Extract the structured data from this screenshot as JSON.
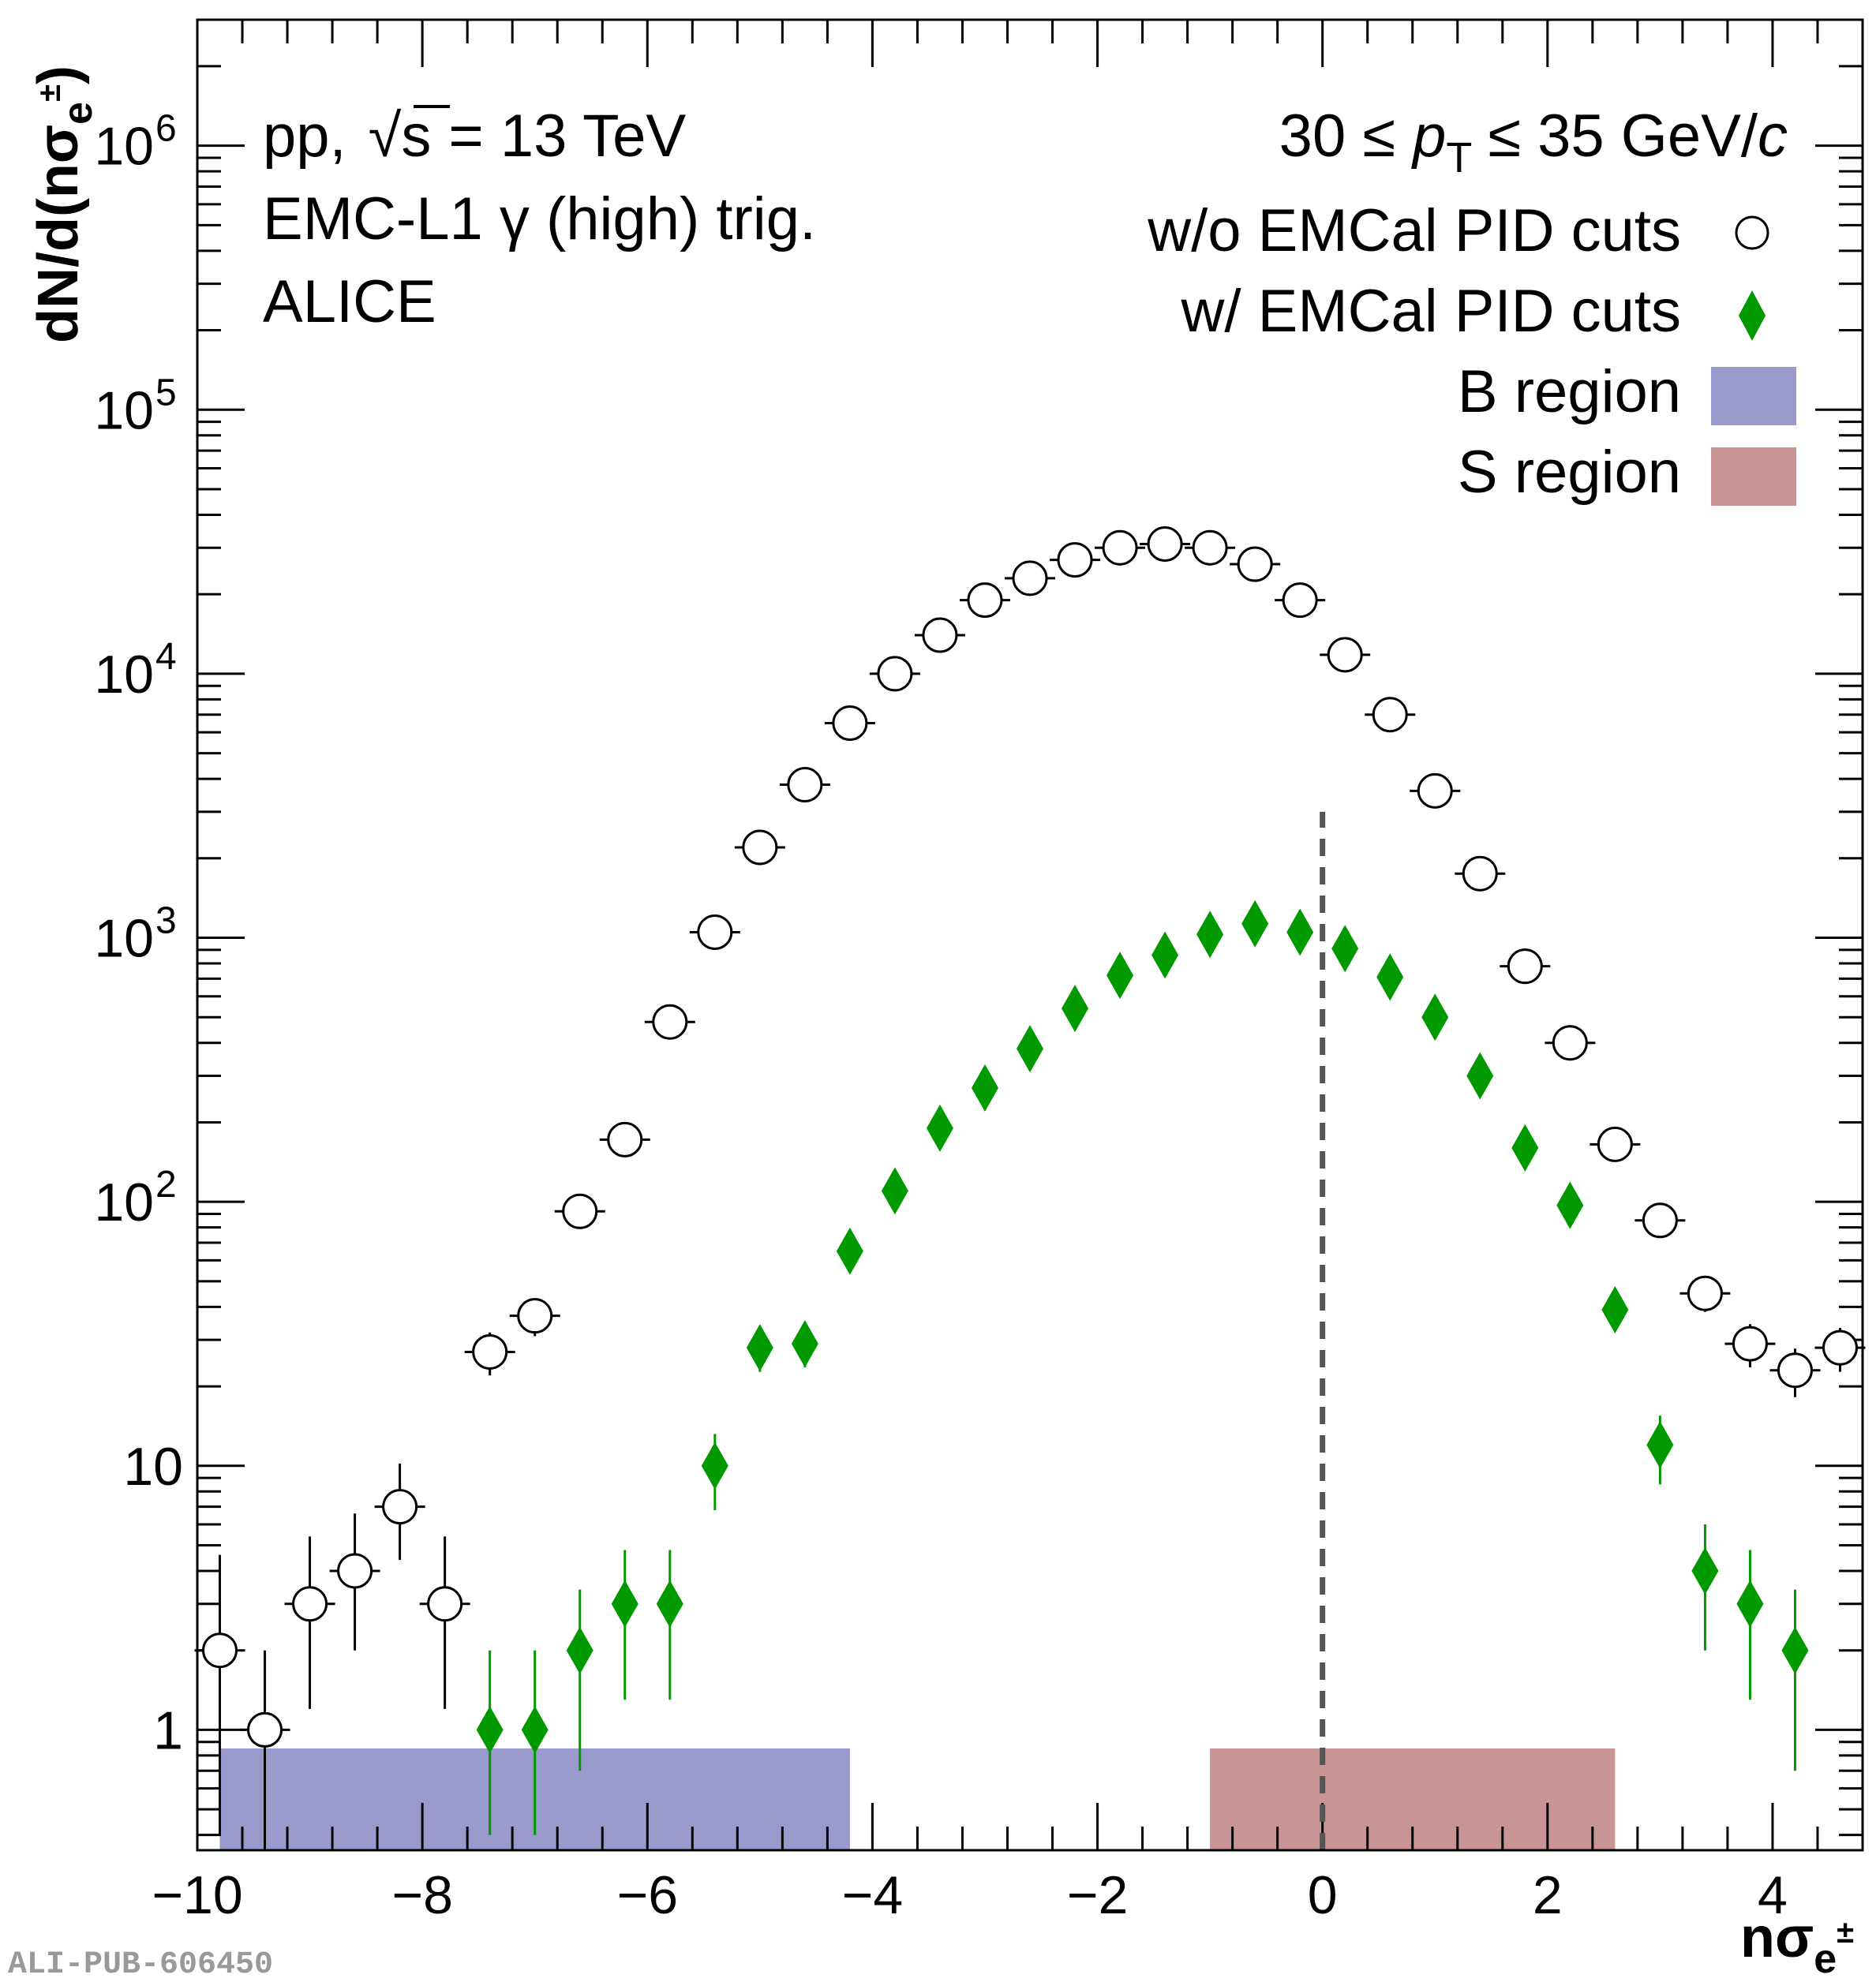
{
  "chart_data": {
    "type": "scatter",
    "xlabel": "nσ",
    "xlabel_sub": "e",
    "xlabel_sup": "±",
    "ylabel": "dN/d(nσ",
    "ylabel_sub": "e",
    "ylabel_sup": "±",
    "ylabel_close": ")",
    "xlim": [
      -10,
      4.8
    ],
    "ylim": [
      0.35,
      3000000
    ],
    "yscale": "log",
    "x_ticks": [
      "−10",
      "−8",
      "−6",
      "−4",
      "−2",
      "0",
      "2",
      "4"
    ],
    "x_tick_values": [
      -10,
      -8,
      -6,
      -4,
      -2,
      0,
      2,
      4
    ],
    "y_ticks": [
      {
        "value": 1,
        "base": "1",
        "exp": ""
      },
      {
        "value": 10,
        "base": "10",
        "exp": ""
      },
      {
        "value": 100,
        "base": "10",
        "exp": "2"
      },
      {
        "value": 1000,
        "base": "10",
        "exp": "3"
      },
      {
        "value": 10000,
        "base": "10",
        "exp": "4"
      },
      {
        "value": 100000,
        "base": "10",
        "exp": "5"
      },
      {
        "value": 1000000,
        "base": "10",
        "exp": "6"
      }
    ],
    "annotations": {
      "line1_pre": "pp,",
      "line1_root": "√",
      "line1_s": "s",
      "line1_post": "= 13 TeV",
      "line2": "EMC-L1 γ (high) trig.",
      "line3": "ALICE",
      "pt_pre": "30 ≤",
      "pt_p": "p",
      "pt_sub": "T",
      "pt_post": "≤ 35 GeV/",
      "pt_c": "c"
    },
    "legend_position": "top-right",
    "legend": [
      {
        "label": "w/o EMCal PID cuts",
        "marker": "open-circle"
      },
      {
        "label": "w/ EMCal PID cuts",
        "marker": "diamond"
      },
      {
        "label": "B region",
        "marker": "box"
      },
      {
        "label": "S region",
        "marker": "box"
      }
    ],
    "colors": {
      "open": "#000000",
      "diamond": "#009900",
      "b_region": "#9999cc",
      "s_region": "#c99494",
      "dashed": "#555555"
    },
    "b_region": [
      -9.8,
      -4.2
    ],
    "s_region": [
      -1.0,
      2.6
    ],
    "dashed_x": 0,
    "dashed_top": 3000,
    "series": [
      {
        "marker": "open-circle",
        "x": [
          -9.8,
          -9.4,
          -9.0,
          -8.6,
          -8.2,
          -7.8,
          -7.4,
          -7.0,
          -6.6,
          -6.2,
          -5.8,
          -5.4,
          -5.0,
          -4.6,
          -4.2,
          -3.8,
          -3.4,
          -3.0,
          -2.6,
          -2.2,
          -1.8,
          -1.4,
          -1.0,
          -0.6,
          -0.2,
          0.2,
          0.6,
          1.0,
          1.4,
          1.8,
          2.2,
          2.6,
          3.0,
          3.4,
          3.8,
          4.2,
          4.6
        ],
        "y": [
          2,
          1,
          3,
          4,
          7,
          3,
          27,
          37,
          92,
          172,
          480,
          1050,
          2200,
          3800,
          6500,
          10000,
          14000,
          19000,
          23000,
          27000,
          30000,
          31000,
          30000,
          26000,
          19000,
          11800,
          7000,
          3600,
          1750,
          780,
          400,
          165,
          85,
          45,
          29,
          23,
          28
        ],
        "err_lo": [
          1.6,
          0.9,
          1.8,
          2.0,
          2.6,
          1.8,
          5,
          6,
          9,
          13,
          22,
          32,
          47,
          62,
          81,
          100,
          118,
          138,
          152,
          164,
          173,
          176,
          173,
          161,
          138,
          109,
          84,
          60,
          42,
          28,
          20,
          13,
          9,
          6.7,
          5.4,
          4.8,
          5.3
        ],
        "err_hi": [
          2.6,
          1.0,
          2.4,
          2.6,
          3.2,
          2.4,
          5,
          6,
          9,
          13,
          22,
          32,
          47,
          62,
          81,
          100,
          118,
          138,
          152,
          164,
          173,
          176,
          173,
          161,
          138,
          109,
          84,
          60,
          42,
          28,
          20,
          13,
          9,
          6.7,
          5.4,
          4.8,
          5.3
        ]
      },
      {
        "marker": "diamond",
        "x": [
          -7.4,
          -7.0,
          -6.6,
          -6.2,
          -5.8,
          -5.4,
          -5.0,
          -4.6,
          -4.2,
          -3.8,
          -3.4,
          -3.0,
          -2.6,
          -2.2,
          -1.8,
          -1.4,
          -1.0,
          -0.6,
          -0.2,
          0.2,
          0.6,
          1.0,
          1.4,
          1.8,
          2.2,
          2.6,
          3.0,
          3.4,
          3.8,
          4.2
        ],
        "y": [
          1,
          1,
          2,
          3,
          3,
          10,
          28,
          29,
          65,
          110,
          190,
          270,
          380,
          540,
          720,
          860,
          1030,
          1130,
          1050,
          910,
          710,
          500,
          300,
          160,
          97,
          39,
          12,
          4,
          3,
          2
        ],
        "err_lo": [
          0.6,
          0.6,
          1.3,
          1.7,
          1.7,
          3.2,
          5.3,
          5.4,
          8,
          10.5,
          13.8,
          16.4,
          19.5,
          23.2,
          26.8,
          29.3,
          32,
          33.6,
          32.4,
          30.2,
          26.6,
          22.4,
          17.3,
          12.6,
          9.8,
          6.2,
          3.5,
          2.0,
          1.7,
          1.3
        ],
        "err_hi": [
          1.0,
          1.0,
          1.4,
          1.8,
          1.8,
          3.2,
          5.3,
          5.4,
          8,
          10.5,
          13.8,
          16.4,
          19.5,
          23.2,
          26.8,
          29.3,
          32,
          33.6,
          32.4,
          30.2,
          26.6,
          22.4,
          17.3,
          12.6,
          9.8,
          6.2,
          3.5,
          2.0,
          1.8,
          1.4
        ]
      }
    ]
  },
  "watermark": "ALI-PUB-606450"
}
